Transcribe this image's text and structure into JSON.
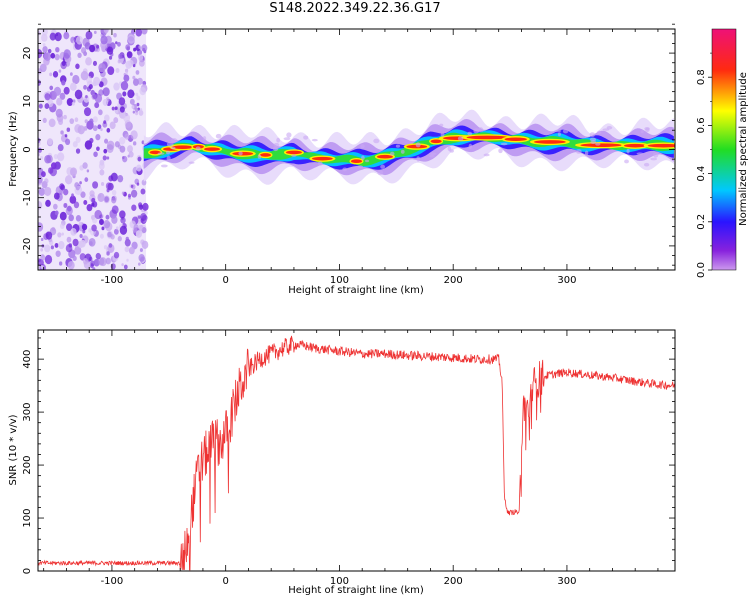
{
  "figure": {
    "title": "S148.2022.349.22.36.G17"
  },
  "colorbar": {
    "label": "Normalized spectral amplitude",
    "ticks": [
      "0.0",
      "0.2",
      "0.4",
      "0.6",
      "0.8"
    ],
    "tick_values": [
      0.0,
      0.2,
      0.4,
      0.6,
      0.8
    ],
    "range": [
      0,
      1
    ],
    "colormap": "rainbow (magenta-blue-cyan-green-yellow-red)"
  },
  "chart_data": [
    {
      "type": "heatmap",
      "title": "",
      "xlabel": "Height of straight line (km)",
      "ylabel": "Frequency (Hz)",
      "xlim": [
        -165,
        395
      ],
      "ylim": [
        -25,
        25
      ],
      "x_ticks": [
        -100,
        0,
        100,
        200,
        300
      ],
      "x_tick_labels": [
        "-100",
        "0",
        "100",
        "200",
        "300"
      ],
      "y_ticks": [
        -20,
        -10,
        0,
        10,
        20
      ],
      "y_tick_labels": [
        "-20",
        "-10",
        "0",
        "10",
        "20"
      ],
      "noise_region_x": [
        -165,
        -70
      ],
      "ridge": {
        "x": [
          -70,
          -50,
          -30,
          -10,
          10,
          40,
          60,
          80,
          100,
          120,
          140,
          160,
          180,
          200,
          220,
          240,
          260,
          280,
          300,
          320,
          340,
          360,
          395
        ],
        "frequency": [
          -1.0,
          0.0,
          0.8,
          0.0,
          -0.8,
          -1.2,
          -0.6,
          -1.8,
          -2.2,
          -2.5,
          -1.5,
          0.0,
          1.5,
          2.3,
          2.5,
          2.5,
          2.0,
          1.6,
          1.5,
          1.0,
          0.8,
          0.8,
          0.8
        ]
      },
      "grid": false
    },
    {
      "type": "line",
      "title": "",
      "xlabel": "Height of straight line (km)",
      "ylabel": "SNR (10 * v/v)",
      "xlim": [
        -165,
        395
      ],
      "ylim": [
        0,
        455
      ],
      "x_ticks": [
        -100,
        0,
        100,
        200,
        300
      ],
      "x_tick_labels": [
        "-100",
        "0",
        "100",
        "200",
        "300"
      ],
      "y_ticks": [
        0,
        100,
        200,
        300,
        400
      ],
      "y_tick_labels": [
        "0",
        "100",
        "200",
        "300",
        "400"
      ],
      "series": [
        {
          "color": "#ee3333",
          "x": [
            -165,
            -100,
            -50,
            -40,
            -35,
            -30,
            -25,
            -20,
            -15,
            -10,
            -5,
            0,
            5,
            10,
            15,
            20,
            25,
            30,
            40,
            50,
            60,
            70,
            80,
            100,
            120,
            140,
            160,
            180,
            200,
            220,
            240,
            243,
            245,
            248,
            250,
            255,
            258,
            262,
            265,
            268,
            270,
            272,
            275,
            280,
            290,
            300,
            320,
            340,
            360,
            380,
            395
          ],
          "y": [
            15,
            15,
            15,
            15,
            40,
            110,
            180,
            210,
            230,
            250,
            240,
            260,
            290,
            330,
            360,
            380,
            390,
            400,
            410,
            420,
            428,
            425,
            420,
            415,
            410,
            410,
            407,
            405,
            403,
            400,
            400,
            360,
            140,
            110,
            110,
            112,
            110,
            320,
            300,
            320,
            340,
            360,
            362,
            368,
            372,
            375,
            370,
            365,
            358,
            352,
            350
          ]
        }
      ],
      "grid": false
    }
  ]
}
